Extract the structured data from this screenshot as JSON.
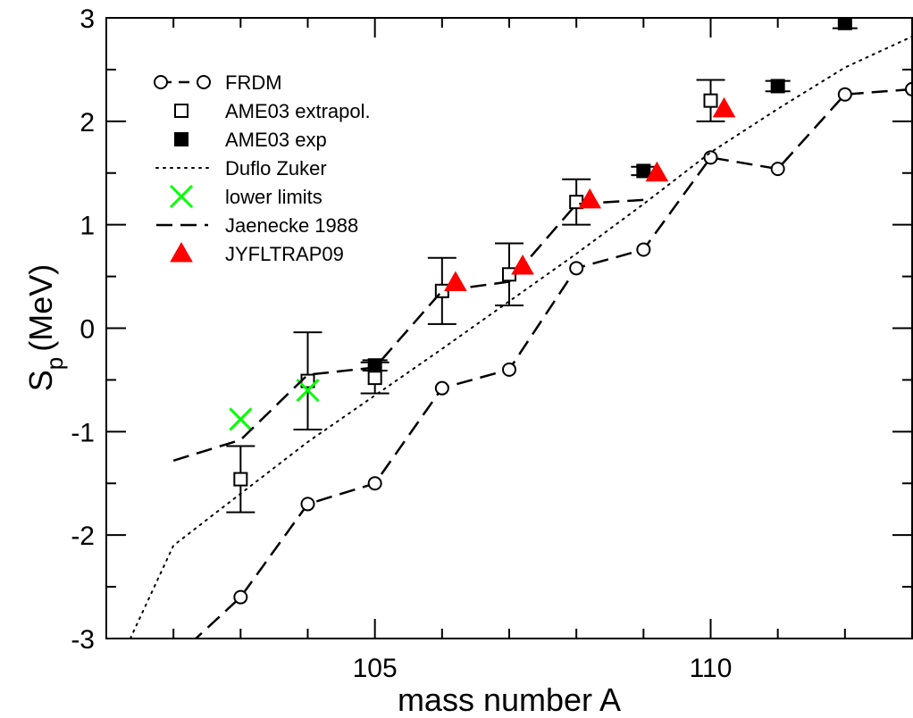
{
  "chart_data": {
    "type": "scatter",
    "xlabel": "mass number A",
    "ylabel_main": "S",
    "ylabel_sub": "p",
    "ylabel_unit": "(MeV)",
    "xlim": [
      101,
      113
    ],
    "ylim": [
      -3,
      3
    ],
    "x_ticks": [
      105,
      110
    ],
    "y_ticks": [
      -3,
      -2,
      -1,
      0,
      1,
      2,
      3
    ],
    "x_tick_labels": [
      "105",
      "110"
    ],
    "y_tick_labels": [
      "-3",
      "-2",
      "-1",
      "0",
      "1",
      "2",
      "3"
    ],
    "grid": false,
    "legend_position": "top-left",
    "series": [
      {
        "name": "FRDM",
        "style": "dashed-line-open-circle",
        "color": "#000000",
        "points": [
          [
            101,
            -3.5
          ],
          [
            102,
            -3.2
          ],
          [
            103,
            -2.6
          ],
          [
            104,
            -1.7
          ],
          [
            105,
            -1.5
          ],
          [
            106,
            -0.58
          ],
          [
            107,
            -0.4
          ],
          [
            108,
            0.58
          ],
          [
            109,
            0.76
          ],
          [
            110,
            1.65
          ],
          [
            111,
            1.54
          ],
          [
            112,
            2.26
          ],
          [
            113,
            2.31
          ]
        ]
      },
      {
        "name": "AME03 extrapol.",
        "style": "open-square-errorbar",
        "color": "#000000",
        "points": [
          [
            103,
            -1.46,
            0.32
          ],
          [
            104,
            -0.51,
            0.47
          ],
          [
            105,
            -0.48,
            0.15
          ],
          [
            106,
            0.36,
            0.32
          ],
          [
            107,
            0.52,
            0.3
          ],
          [
            108,
            1.22,
            0.22
          ],
          [
            110,
            2.2,
            0.2
          ]
        ]
      },
      {
        "name": "AME03 exp",
        "style": "filled-square-errorbar",
        "color": "#000000",
        "points": [
          [
            105,
            -0.36,
            0.05
          ],
          [
            109,
            1.52,
            0.04
          ],
          [
            111,
            2.34,
            0.05
          ],
          [
            112,
            2.95,
            0.05
          ]
        ]
      },
      {
        "name": "Duflo Zuker",
        "style": "dotted-line",
        "color": "#000000",
        "points": [
          [
            101,
            -3.5
          ],
          [
            102,
            -2.1
          ],
          [
            103,
            -1.6
          ],
          [
            104,
            -1.1
          ],
          [
            105,
            -0.65
          ],
          [
            106,
            -0.2
          ],
          [
            107,
            0.26
          ],
          [
            108,
            0.72
          ],
          [
            109,
            1.2
          ],
          [
            110,
            1.7
          ],
          [
            111,
            2.12
          ],
          [
            112,
            2.52
          ],
          [
            113,
            2.82
          ]
        ]
      },
      {
        "name": "lower limits",
        "style": "cross",
        "color": "#00ff00",
        "points": [
          [
            103,
            -0.88
          ],
          [
            104,
            -0.6
          ]
        ]
      },
      {
        "name": "Jaenecke 1988",
        "style": "dashed-line",
        "color": "#000000",
        "points": [
          [
            102,
            -1.28
          ],
          [
            103,
            -1.08
          ],
          [
            104,
            -0.45
          ],
          [
            105,
            -0.38
          ],
          [
            106,
            0.36
          ],
          [
            107,
            0.45
          ],
          [
            108,
            1.2
          ],
          [
            109,
            1.24
          ]
        ]
      },
      {
        "name": "JYFLTRAP09",
        "style": "filled-triangle",
        "color": "#ff0000",
        "points": [
          [
            106.2,
            0.44
          ],
          [
            107.2,
            0.6
          ],
          [
            108.2,
            1.24
          ],
          [
            109.2,
            1.5
          ],
          [
            110.2,
            2.12
          ]
        ]
      }
    ]
  }
}
